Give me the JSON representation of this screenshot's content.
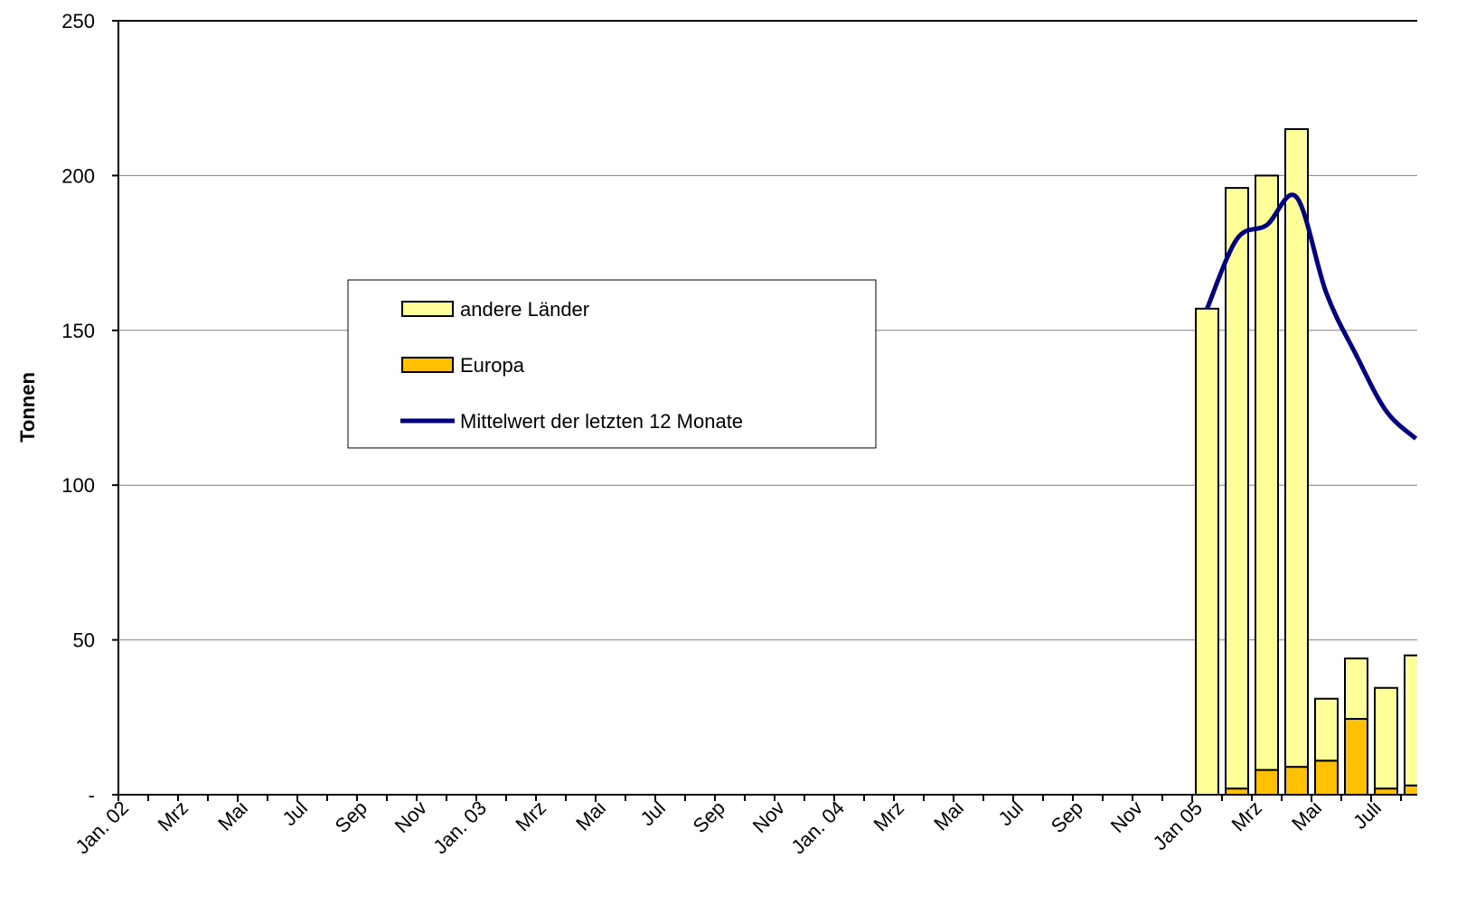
{
  "chart_data": {
    "type": "bar",
    "stacked": true,
    "y_label": "Tonnen",
    "categories": [
      "Jan. 02",
      null,
      "Mrz",
      null,
      "Mai",
      null,
      "Jul",
      null,
      "Sep",
      null,
      "Nov",
      null,
      "Jan. 03",
      null,
      "Mrz",
      null,
      "Mai",
      null,
      "Jul",
      null,
      "Sep",
      null,
      "Nov",
      null,
      "Jan. 04",
      null,
      "Mrz",
      null,
      "Mai",
      null,
      "Jul",
      null,
      "Sep",
      null,
      "Nov",
      null,
      "Jan 05",
      null,
      "Mrz",
      null,
      "Mai",
      null,
      "Juli",
      null
    ],
    "series": [
      {
        "name": "andere Länder",
        "type": "bar",
        "color": "#ffff99",
        "values": [
          null,
          null,
          null,
          null,
          null,
          null,
          null,
          null,
          null,
          null,
          null,
          null,
          null,
          null,
          null,
          null,
          null,
          null,
          null,
          null,
          null,
          null,
          null,
          null,
          null,
          null,
          null,
          null,
          null,
          null,
          null,
          null,
          null,
          null,
          null,
          null,
          157,
          194,
          192,
          206,
          20,
          19.5,
          32.5,
          42
        ]
      },
      {
        "name": "Europa",
        "type": "bar",
        "color": "#ffc000",
        "values": [
          null,
          null,
          null,
          null,
          null,
          null,
          null,
          null,
          null,
          null,
          null,
          null,
          null,
          null,
          null,
          null,
          null,
          null,
          null,
          null,
          null,
          null,
          null,
          null,
          null,
          null,
          null,
          null,
          null,
          null,
          null,
          null,
          null,
          null,
          null,
          null,
          0,
          2,
          8,
          9,
          11,
          24.5,
          2,
          3
        ]
      },
      {
        "name": "Mittelwert der letzten 12 Monate",
        "type": "line",
        "color": "#000080",
        "values": [
          null,
          null,
          null,
          null,
          null,
          null,
          null,
          null,
          null,
          null,
          null,
          null,
          null,
          null,
          null,
          null,
          null,
          null,
          null,
          null,
          null,
          null,
          null,
          null,
          null,
          null,
          null,
          null,
          null,
          null,
          null,
          null,
          null,
          null,
          null,
          null,
          157,
          179.5,
          184,
          193,
          162,
          142,
          124,
          115
        ]
      }
    ],
    "ylim": [
      0,
      250
    ],
    "yticks": [
      {
        "value": 0,
        "label": "-"
      },
      50,
      100,
      150,
      200,
      250
    ],
    "grid": true,
    "legend": "center-left"
  }
}
